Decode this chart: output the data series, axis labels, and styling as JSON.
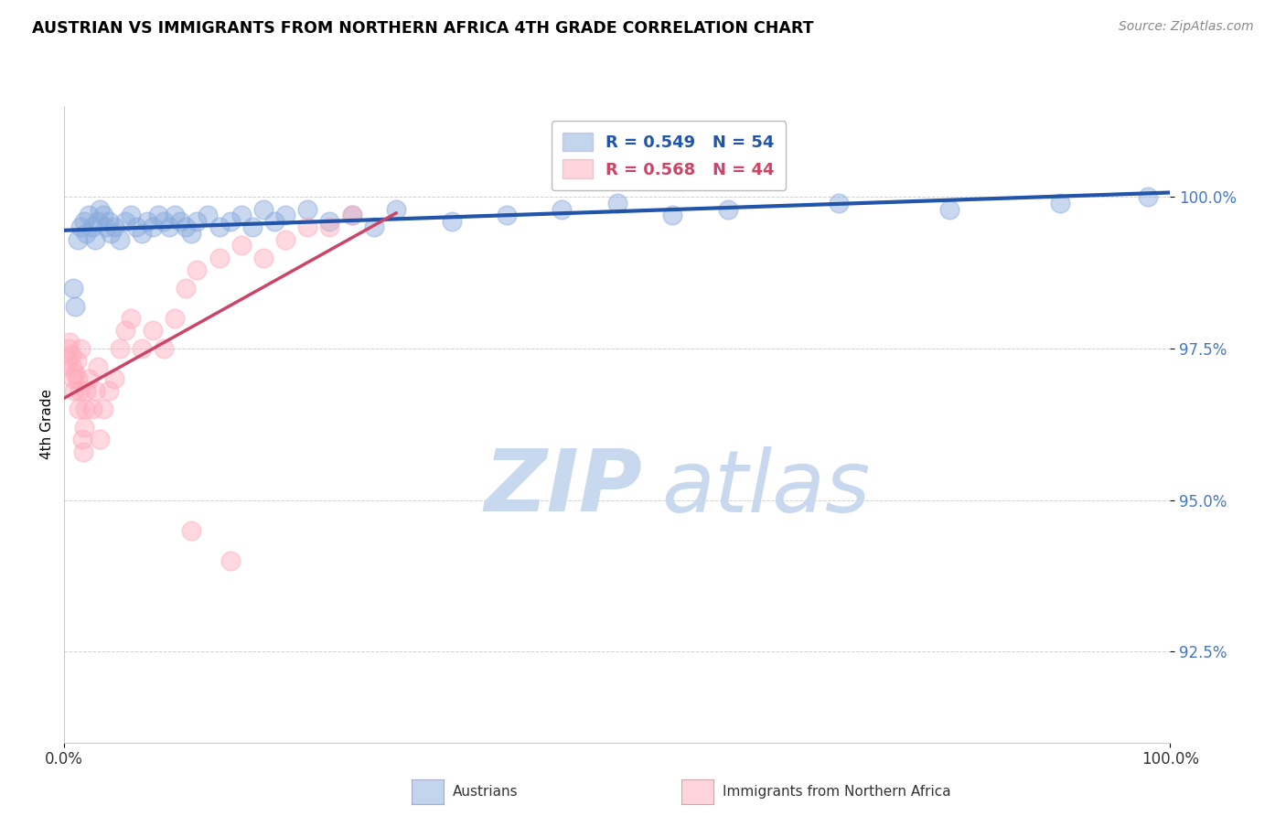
{
  "title": "AUSTRIAN VS IMMIGRANTS FROM NORTHERN AFRICA 4TH GRADE CORRELATION CHART",
  "source": "Source: ZipAtlas.com",
  "ylabel": "4th Grade",
  "xlim": [
    0.0,
    100.0
  ],
  "ylim": [
    91.0,
    101.5
  ],
  "yticks": [
    92.5,
    95.0,
    97.5,
    100.0
  ],
  "ytick_labels": [
    "92.5%",
    "95.0%",
    "97.5%",
    "100.0%"
  ],
  "xticks": [
    0.0,
    100.0
  ],
  "xtick_labels": [
    "0.0%",
    "100.0%"
  ],
  "legend_label1": "Austrians",
  "legend_label2": "Immigrants from Northern Africa",
  "R1": 0.549,
  "N1": 54,
  "R2": 0.568,
  "N2": 44,
  "blue_color": "#88aadd",
  "pink_color": "#ffaabb",
  "blue_line_color": "#2255aa",
  "pink_line_color": "#cc4466",
  "watermark_zip_color": "#c8d8ee",
  "watermark_atlas_color": "#c8d8ee",
  "background_color": "#ffffff",
  "blue_x": [
    0.8,
    1.0,
    1.2,
    1.5,
    1.8,
    2.0,
    2.2,
    2.5,
    2.8,
    3.0,
    3.2,
    3.5,
    3.8,
    4.0,
    4.2,
    4.5,
    5.0,
    5.5,
    6.0,
    6.5,
    7.0,
    7.5,
    8.0,
    8.5,
    9.0,
    9.5,
    10.0,
    10.5,
    11.0,
    11.5,
    12.0,
    13.0,
    14.0,
    15.0,
    16.0,
    17.0,
    18.0,
    19.0,
    20.0,
    22.0,
    24.0,
    26.0,
    28.0,
    30.0,
    35.0,
    40.0,
    45.0,
    50.0,
    55.0,
    60.0,
    70.0,
    80.0,
    90.0,
    98.0
  ],
  "blue_y": [
    98.5,
    98.2,
    99.3,
    99.5,
    99.6,
    99.4,
    99.7,
    99.5,
    99.3,
    99.6,
    99.8,
    99.7,
    99.5,
    99.6,
    99.4,
    99.5,
    99.3,
    99.6,
    99.7,
    99.5,
    99.4,
    99.6,
    99.5,
    99.7,
    99.6,
    99.5,
    99.7,
    99.6,
    99.5,
    99.4,
    99.6,
    99.7,
    99.5,
    99.6,
    99.7,
    99.5,
    99.8,
    99.6,
    99.7,
    99.8,
    99.6,
    99.7,
    99.5,
    99.8,
    99.6,
    99.7,
    99.8,
    99.9,
    99.7,
    99.8,
    99.9,
    99.8,
    99.9,
    100.0
  ],
  "pink_x": [
    0.3,
    0.4,
    0.5,
    0.6,
    0.7,
    0.8,
    0.9,
    1.0,
    1.1,
    1.2,
    1.3,
    1.4,
    1.5,
    1.6,
    1.7,
    1.8,
    1.9,
    2.0,
    2.2,
    2.5,
    2.8,
    3.0,
    3.2,
    3.5,
    4.0,
    4.5,
    5.0,
    5.5,
    6.0,
    7.0,
    8.0,
    9.0,
    10.0,
    11.0,
    12.0,
    14.0,
    16.0,
    18.0,
    20.0,
    22.0,
    24.0,
    26.0,
    11.5,
    15.0
  ],
  "pink_y": [
    97.3,
    97.5,
    97.6,
    97.4,
    97.2,
    97.0,
    96.8,
    97.1,
    97.3,
    97.0,
    96.5,
    96.8,
    97.5,
    96.0,
    95.8,
    96.2,
    96.5,
    96.8,
    97.0,
    96.5,
    96.8,
    97.2,
    96.0,
    96.5,
    96.8,
    97.0,
    97.5,
    97.8,
    98.0,
    97.5,
    97.8,
    97.5,
    98.0,
    98.5,
    98.8,
    99.0,
    99.2,
    99.0,
    99.3,
    99.5,
    99.5,
    99.7,
    94.5,
    94.0
  ]
}
